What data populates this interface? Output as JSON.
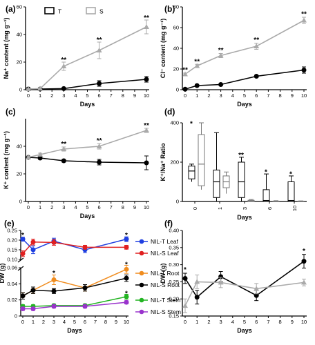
{
  "colors": {
    "T": "#000000",
    "S": "#aaaaaa",
    "nilt_leaf": "#1f3fe0",
    "nils_leaf": "#e02020",
    "nilt_root": "#f08c1e",
    "nils_root": "#000000",
    "nilt_stem": "#22b422",
    "nils_stem": "#9933cc"
  },
  "chart_data": [
    {
      "panel": "a",
      "type": "line",
      "title": "(a)",
      "xlabel": "Days",
      "ylabel": "Na⁺ content (mg g⁻¹)",
      "x": [
        0,
        1,
        3,
        6,
        10
      ],
      "xticks": [
        0,
        1,
        2,
        3,
        4,
        5,
        6,
        7,
        8,
        9,
        10
      ],
      "ylim": [
        0,
        60
      ],
      "yticks": [
        0,
        20,
        40,
        60
      ],
      "series": [
        {
          "name": "T",
          "values": [
            0.5,
            0.5,
            0.8,
            4.5,
            7.5
          ],
          "err": [
            0.3,
            0.3,
            0.5,
            2,
            2
          ]
        },
        {
          "name": "S",
          "values": [
            0.5,
            0.8,
            17,
            28.5,
            45.5
          ],
          "err": [
            0.3,
            0.5,
            3,
            6,
            5
          ]
        }
      ],
      "legend": [
        "T",
        "S"
      ],
      "annotations": [
        {
          "x": 3,
          "y": 21.5,
          "text": "**"
        },
        {
          "x": 6,
          "y": 36,
          "text": "**"
        },
        {
          "x": 10,
          "y": 52,
          "text": "**"
        }
      ]
    },
    {
      "panel": "b",
      "type": "line",
      "title": "(b)",
      "xlabel": "Days",
      "ylabel": "Cl⁻ content (mg g⁻¹)",
      "x": [
        0,
        1,
        3,
        6,
        10
      ],
      "xticks": [
        0,
        1,
        2,
        3,
        4,
        5,
        6,
        7,
        8,
        9,
        10
      ],
      "ylim": [
        0,
        80
      ],
      "yticks": [
        0,
        20,
        40,
        60,
        80
      ],
      "series": [
        {
          "name": "T",
          "values": [
            0.5,
            4,
            5,
            13,
            19
          ],
          "err": [
            0.3,
            0.5,
            0.5,
            1,
            3
          ]
        },
        {
          "name": "S",
          "values": [
            15,
            23,
            33,
            42,
            67
          ],
          "err": [
            1,
            1.5,
            2,
            3,
            3
          ]
        }
      ],
      "annotations": [
        {
          "x": 0,
          "y": 19,
          "text": "**"
        },
        {
          "x": 1,
          "y": 27,
          "text": "**"
        },
        {
          "x": 3,
          "y": 38,
          "text": "**"
        },
        {
          "x": 6,
          "y": 48,
          "text": "**"
        },
        {
          "x": 10,
          "y": 73,
          "text": "**"
        }
      ]
    },
    {
      "panel": "c",
      "type": "line",
      "title": "(c)",
      "xlabel": "Days",
      "ylabel": "K⁺ content (mg g⁻¹)",
      "x": [
        0,
        1,
        3,
        6,
        10
      ],
      "xticks": [
        0,
        1,
        2,
        3,
        4,
        5,
        6,
        7,
        8,
        9,
        10
      ],
      "ylim": [
        0,
        60
      ],
      "yticks": [
        0,
        20,
        40
      ],
      "series": [
        {
          "name": "T",
          "values": [
            32,
            31.5,
            29.5,
            28.5,
            28
          ],
          "err": [
            1,
            1,
            1,
            2,
            5
          ]
        },
        {
          "name": "S",
          "values": [
            32,
            34,
            38,
            40,
            51.5
          ],
          "err": [
            1,
            1,
            1.5,
            2,
            1.5
          ]
        }
      ],
      "annotations": [
        {
          "x": 3,
          "y": 41.5,
          "text": "**"
        },
        {
          "x": 6,
          "y": 44,
          "text": "**"
        },
        {
          "x": 10,
          "y": 55,
          "text": "**"
        }
      ]
    },
    {
      "panel": "d",
      "type": "box",
      "title": "(d)",
      "xlabel": "Days",
      "ylabel": "K⁺/Na⁺ Ratio",
      "categories": [
        "0",
        "1",
        "3",
        "6",
        "10"
      ],
      "ylim": [
        0,
        400
      ],
      "yticks": [
        0,
        200,
        400
      ],
      "boxes": [
        {
          "group": "T",
          "day": "0",
          "min": 100,
          "q1": 115,
          "median": 155,
          "q3": 180,
          "max": 190
        },
        {
          "group": "S",
          "day": "0",
          "min": 60,
          "q1": 80,
          "median": 190,
          "q3": 340,
          "max": 400
        },
        {
          "group": "T",
          "day": "1",
          "min": 0,
          "q1": 20,
          "median": 100,
          "q3": 160,
          "max": 350
        },
        {
          "group": "S",
          "day": "1",
          "min": 40,
          "q1": 70,
          "median": 100,
          "q3": 130,
          "max": 150
        },
        {
          "group": "T",
          "day": "3",
          "min": 0,
          "q1": 20,
          "median": 100,
          "q3": 200,
          "max": 225
        },
        {
          "group": "S",
          "day": "3",
          "min": 0,
          "q1": 0,
          "median": 3,
          "q3": 6,
          "max": 10
        },
        {
          "group": "T",
          "day": "6",
          "min": 0,
          "q1": 0,
          "median": 5,
          "q3": 60,
          "max": 140
        },
        {
          "group": "S",
          "day": "6",
          "min": 0,
          "q1": 0,
          "median": 1,
          "q3": 2,
          "max": 4
        },
        {
          "group": "T",
          "day": "10",
          "min": 0,
          "q1": 0,
          "median": 5,
          "q3": 100,
          "max": 130
        },
        {
          "group": "S",
          "day": "10",
          "min": 0,
          "q1": 0,
          "median": 1,
          "q3": 2,
          "max": 3
        }
      ],
      "annotations": [
        {
          "day": "0",
          "y": 395,
          "text": "*"
        },
        {
          "day": "3",
          "y": 235,
          "text": "**"
        },
        {
          "day": "6",
          "y": 150,
          "text": "*"
        },
        {
          "day": "10",
          "y": 138,
          "text": "*"
        }
      ]
    },
    {
      "panel": "e",
      "type": "line",
      "title": "(e)",
      "xlabel": "Days",
      "ylabel": "DW (g)",
      "x": [
        0,
        1,
        3,
        6,
        10
      ],
      "xticks": [
        0,
        1,
        2,
        3,
        4,
        5,
        6,
        7,
        8,
        9,
        10
      ],
      "axis_break": true,
      "ylim_upper": [
        0.1,
        0.25
      ],
      "yticks_upper": [
        0.1,
        0.15,
        0.2,
        0.25
      ],
      "ylim_lower": [
        0,
        0.06
      ],
      "yticks_lower": [
        0,
        0.02,
        0.04,
        0.06
      ],
      "series": [
        {
          "name": "NIL-T Leaf",
          "values": [
            0.205,
            0.15,
            0.195,
            0.15,
            0.205
          ],
          "err": [
            0.01,
            0.02,
            0.015,
            0.015,
            0.012
          ]
        },
        {
          "name": "NIL-S Leaf",
          "values": [
            0.13,
            0.19,
            0.188,
            0.163,
            0.163
          ],
          "err": [
            0.015,
            0.015,
            0.015,
            0.01,
            0.01
          ]
        },
        {
          "name": "NIL-T Root",
          "values": [
            0.025,
            0.032,
            0.045,
            0.035,
            0.058
          ],
          "err": [
            0.004,
            0.004,
            0.006,
            0.004,
            0.005
          ]
        },
        {
          "name": "NIL-S Root",
          "values": [
            0.025,
            0.032,
            0.031,
            0.035,
            0.047
          ],
          "err": [
            0.004,
            0.004,
            0.003,
            0.004,
            0.004
          ]
        },
        {
          "name": "NIL-T Stem",
          "values": [
            0.012,
            0.012,
            0.013,
            0.013,
            0.024
          ],
          "err": [
            0.002,
            0.002,
            0.002,
            0.002,
            0.003
          ]
        },
        {
          "name": "NIL-S Stem",
          "values": [
            0.009,
            0.009,
            0.012,
            0.012,
            0.017
          ],
          "err": [
            0.002,
            0.002,
            0.002,
            0.002,
            0.002
          ]
        }
      ],
      "legend": [
        "NIL-T Leaf",
        "NIL-S Leaf",
        "NIL-T Root",
        "NIL-S Root",
        "NIL-T Stem",
        "NIL-S Stem"
      ],
      "annotations": [
        {
          "x": 0,
          "y": 0.225,
          "text": "*"
        },
        {
          "x": 10,
          "y": 0.225,
          "text": "*"
        },
        {
          "x": 3,
          "y": 0.053,
          "text": "*"
        },
        {
          "x": 10,
          "y": 0.064,
          "text": "*"
        },
        {
          "x": 10,
          "y": 0.028,
          "text": "*"
        }
      ]
    },
    {
      "panel": "f",
      "type": "line",
      "title": "(f)",
      "xlabel": "Days",
      "ylabel": "DW (g)",
      "x": [
        0,
        1,
        3,
        6,
        10
      ],
      "xticks": [
        0,
        1,
        2,
        3,
        4,
        5,
        6,
        7,
        8,
        9,
        10
      ],
      "ylim": [
        0.15,
        0.4
      ],
      "yticks": [
        0.15,
        0.2,
        0.25,
        0.3,
        0.35,
        0.4
      ],
      "series": [
        {
          "name": "T",
          "values": [
            0.26,
            0.205,
            0.265,
            0.21,
            0.31
          ],
          "err": [
            0.015,
            0.02,
            0.015,
            0.015,
            0.02
          ]
        },
        {
          "name": "S",
          "values": [
            0.18,
            0.25,
            0.248,
            0.23,
            0.248
          ],
          "err": [
            0.02,
            0.02,
            0.015,
            0.015,
            0.01
          ]
        }
      ],
      "annotations": [
        {
          "x": 0,
          "y": 0.285,
          "text": "*"
        },
        {
          "x": 10,
          "y": 0.34,
          "text": "*"
        }
      ]
    }
  ]
}
